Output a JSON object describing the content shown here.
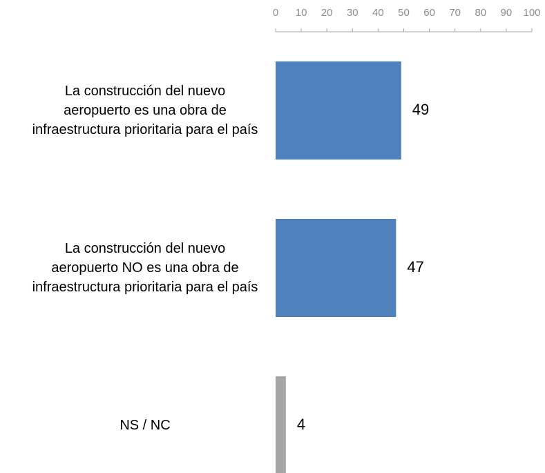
{
  "chart_data": {
    "type": "barh",
    "categories": [
      "La construcción del nuevo aeropuerto es una obra de infraestructura prioritaria para el país",
      "La construcción del nuevo aeropuerto NO es una obra de infraestructura prioritaria para el país",
      "NS / NC"
    ],
    "values": [
      49,
      47,
      4
    ],
    "colors": [
      "#4f81bd",
      "#4f81bd",
      "#a6a6a6"
    ],
    "xlim": [
      0,
      100
    ],
    "xticks": [
      0,
      10,
      20,
      30,
      40,
      50,
      60,
      70,
      80,
      90,
      100
    ],
    "grid": false
  }
}
